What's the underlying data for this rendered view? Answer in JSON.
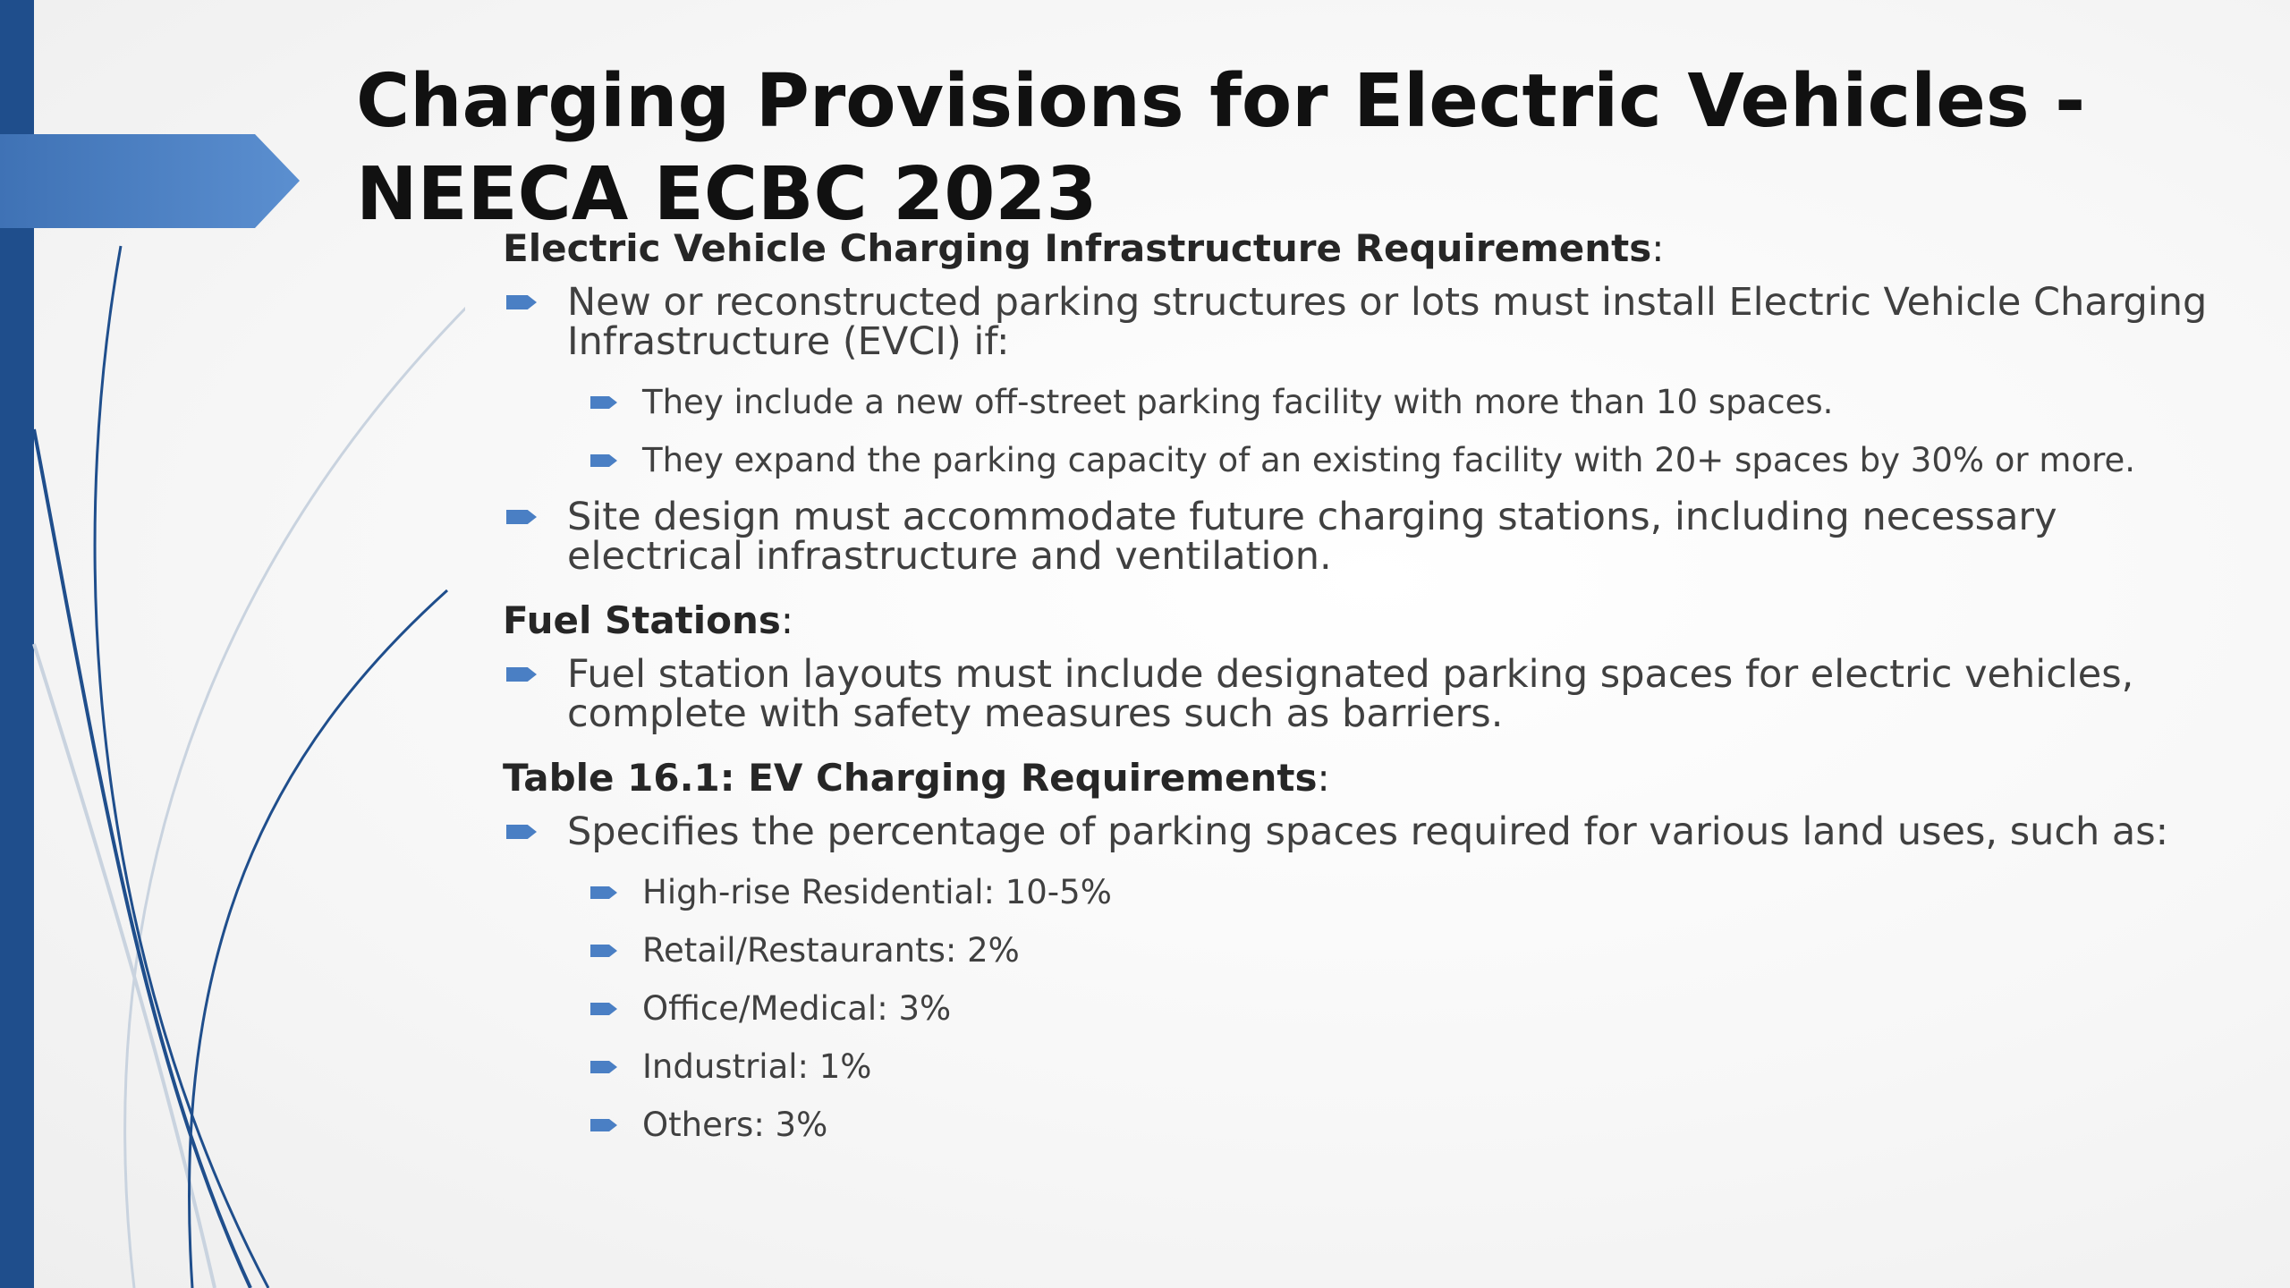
{
  "slide": {
    "title": "Charging Provisions for Electric Vehicles - NEECA ECBC 2023",
    "colors": {
      "left_bar": "#1f4e8c",
      "arrow": "#4a7fc4",
      "bullet": "#4a7fc4",
      "title": "#111111",
      "body": "#404040"
    }
  },
  "sections": [
    {
      "heading": "Electric Vehicle Charging Infrastructure Requirements",
      "suffix": ":",
      "items": [
        {
          "text": "New or reconstructed parking structures or lots must install Electric Vehicle Charging Infrastructure (EVCI) if:",
          "subitems": [
            "They include a new off-street parking facility with more than 10 spaces.",
            "They expand the parking capacity of an existing facility with 20+ spaces by 30% or more."
          ]
        },
        {
          "text": "Site design must accommodate future charging stations, including necessary electrical infrastructure and ventilation."
        }
      ]
    },
    {
      "heading": "Fuel Stations",
      "suffix": ":",
      "items": [
        {
          "text": "Fuel station layouts must include designated parking spaces for electric vehicles, complete with safety measures such as barriers."
        }
      ]
    },
    {
      "heading": "Table 16.1: EV Charging Requirements",
      "suffix": ":",
      "items": [
        {
          "text": "Specifies the percentage of parking spaces required for various land uses, such as:",
          "subitems": [
            "High-rise Residential: 10-5%",
            "Retail/Restaurants: 2%",
            "Office/Medical: 3%",
            "Industrial: 1%",
            "Others: 3%"
          ]
        }
      ]
    }
  ]
}
